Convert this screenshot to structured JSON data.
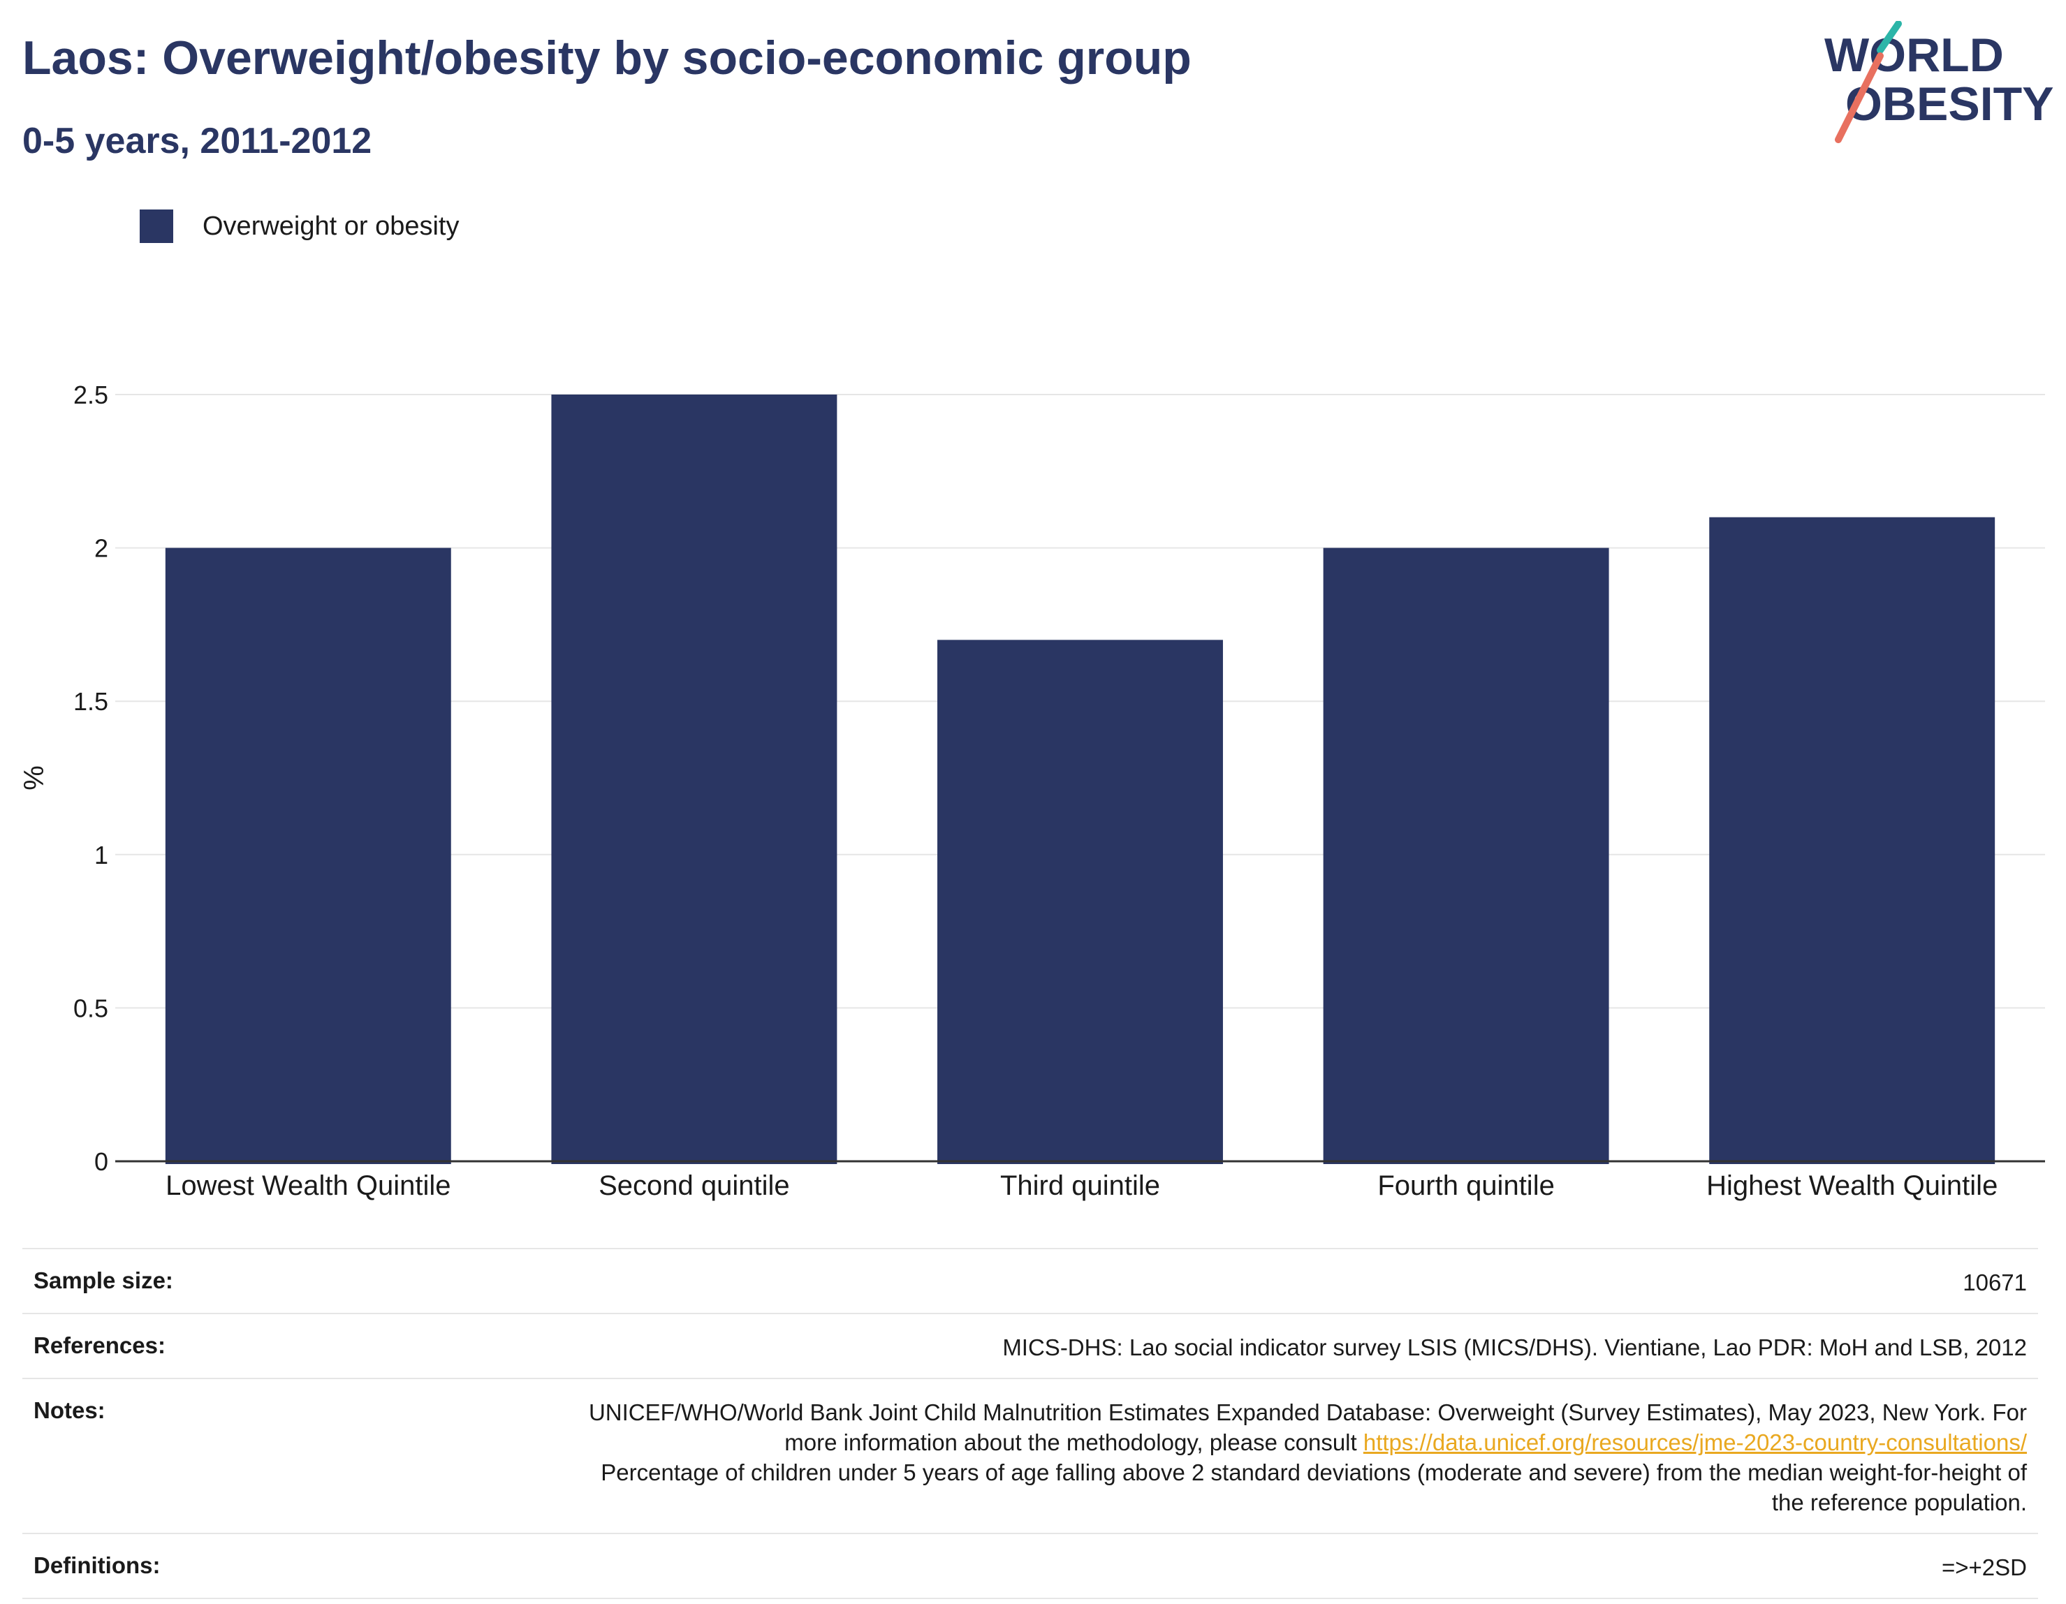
{
  "header": {
    "title": "Laos: Overweight/obesity by socio-economic group",
    "subtitle": "0-5 years, 2011-2012"
  },
  "logo": {
    "line1": "WORLD",
    "line2": "OBESITY",
    "text_color": "#2a3663",
    "slash_colors": [
      "#2cb5a8",
      "#e8705f"
    ]
  },
  "legend": {
    "label": "Overweight or obesity"
  },
  "chart_data": {
    "type": "bar",
    "categories": [
      "Lowest Wealth Quintile",
      "Second quintile",
      "Third quintile",
      "Fourth quintile",
      "Highest Wealth Quintile"
    ],
    "series": [
      {
        "name": "Overweight or obesity",
        "values": [
          2.0,
          2.5,
          1.7,
          2.0,
          2.1
        ],
        "color": "#2a3663"
      }
    ],
    "xlabel": "",
    "ylabel": "%",
    "ylim": [
      0,
      2.5
    ],
    "yticks": [
      0,
      0.5,
      1,
      1.5,
      2,
      2.5
    ],
    "ytick_labels": [
      "0",
      "0.5",
      "1",
      "1.5",
      "2",
      "2.5"
    ],
    "grid": true,
    "legend_position": "top-left"
  },
  "meta": {
    "sample_size_label": "Sample size:",
    "sample_size_value": "10671",
    "references_label": "References:",
    "references_value": "MICS-DHS: Lao social indicator survey LSIS (MICS/DHS). Vientiane, Lao PDR: MoH and LSB, 2012",
    "notes_label": "Notes:",
    "notes_text1": "UNICEF/WHO/World Bank Joint Child Malnutrition Estimates Expanded Database: Overweight (Survey Estimates), May 2023, New York. For more information about the methodology, please consult ",
    "notes_link": "https://data.unicef.org/resources/jme-2023-country-consultations/",
    "notes_text2": "Percentage of children under 5 years of age falling above 2 standard deviations (moderate and severe) from the median weight-for-height of the reference population.",
    "definitions_label": "Definitions:",
    "definitions_value": "=>+2SD"
  },
  "colors": {
    "accent": "#2a3663",
    "link": "#e9a820",
    "grid": "#e6e6e6"
  }
}
